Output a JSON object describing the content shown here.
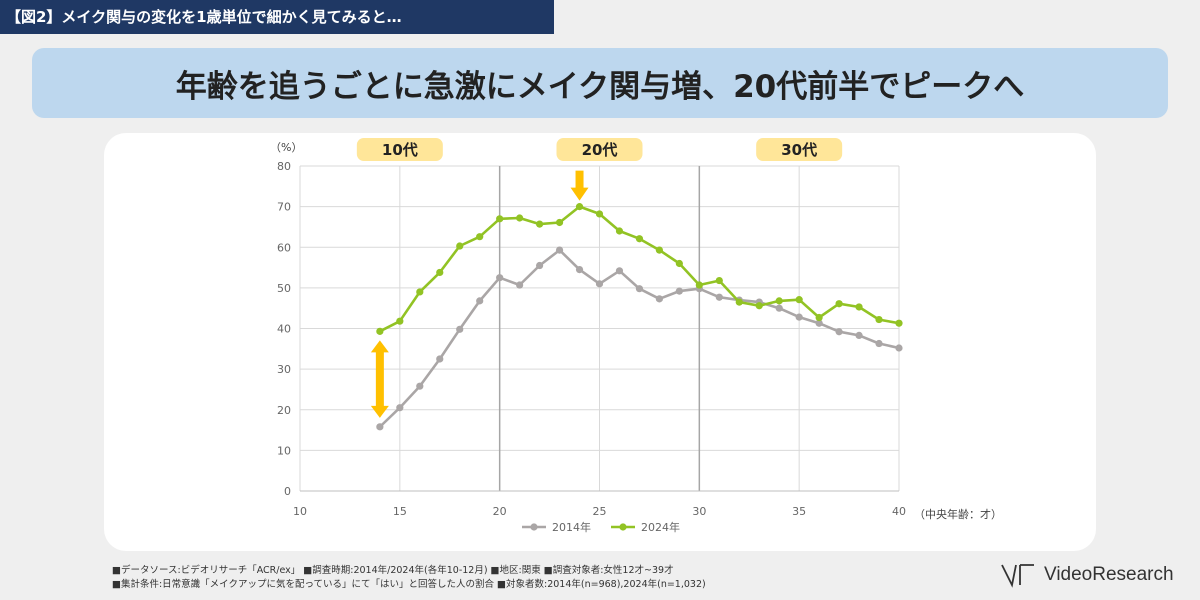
{
  "header_tag": "【図2】メイク関与の変化を1歳単位で細かく見てみると…",
  "headline": "年齢を追うごとに急激にメイク関与増、20代前半でピークへ",
  "chart_data": {
    "type": "line",
    "ylabel": "（%）",
    "xlabel": "（中央年齢：才）",
    "x_ticks": [
      10,
      15,
      20,
      25,
      30,
      35,
      40
    ],
    "y_ticks": [
      0,
      10,
      20,
      30,
      40,
      50,
      60,
      70,
      80
    ],
    "xlim": [
      10,
      40
    ],
    "ylim": [
      0,
      80
    ],
    "grid": true,
    "legend_position": "bottom-center",
    "age_groups": [
      {
        "label": "10代",
        "start": 10,
        "end": 20
      },
      {
        "label": "20代",
        "start": 20,
        "end": 30
      },
      {
        "label": "30代",
        "start": 30,
        "end": 40
      }
    ],
    "x": [
      14,
      15,
      16,
      17,
      18,
      19,
      20,
      21,
      22,
      23,
      24,
      25,
      26,
      27,
      28,
      29,
      30,
      31,
      32,
      33,
      34,
      35,
      36,
      37,
      38,
      39,
      40
    ],
    "series": [
      {
        "name": "2014年",
        "color": "#aaa6a6",
        "values": [
          15.8,
          20.5,
          25.8,
          32.5,
          39.8,
          46.8,
          52.5,
          50.7,
          55.5,
          59.3,
          54.5,
          51.0,
          54.2,
          49.8,
          47.3,
          49.2,
          49.8,
          47.7,
          47.0,
          46.5,
          45.0,
          42.8,
          41.3,
          39.2,
          38.3,
          36.3,
          35.2
        ]
      },
      {
        "name": "2024年",
        "color": "#92c324",
        "values": [
          39.3,
          41.8,
          49.0,
          53.8,
          60.3,
          62.6,
          67.0,
          67.2,
          65.7,
          66.1,
          70.0,
          68.2,
          64.0,
          62.1,
          59.3,
          56.0,
          50.7,
          51.8,
          46.5,
          45.6,
          46.8,
          47.1,
          42.7,
          46.1,
          45.3,
          42.2,
          41.3
        ]
      }
    ],
    "annotations": {
      "increase_arrow_at": 14,
      "peak_arrow_at": 24
    }
  },
  "footnotes": [
    "■データソース:ビデオリサーチ「ACR/ex」 ■調査時期:2014年/2024年(各年10-12月)   ■地区:関東   ■調査対象者:女性12才~39才",
    "■集計条件:日常意識「メイクアップに気を配っている」にて「はい」と回答した人の割合    ■対象者数:2014年(n=968),2024年(n=1,032)"
  ],
  "logo_text": "VideoResearch",
  "colors": {
    "navy": "#1f3864",
    "banner": "#bdd7ee",
    "label_badge": "#ffe699",
    "arrow": "#ffc000"
  }
}
